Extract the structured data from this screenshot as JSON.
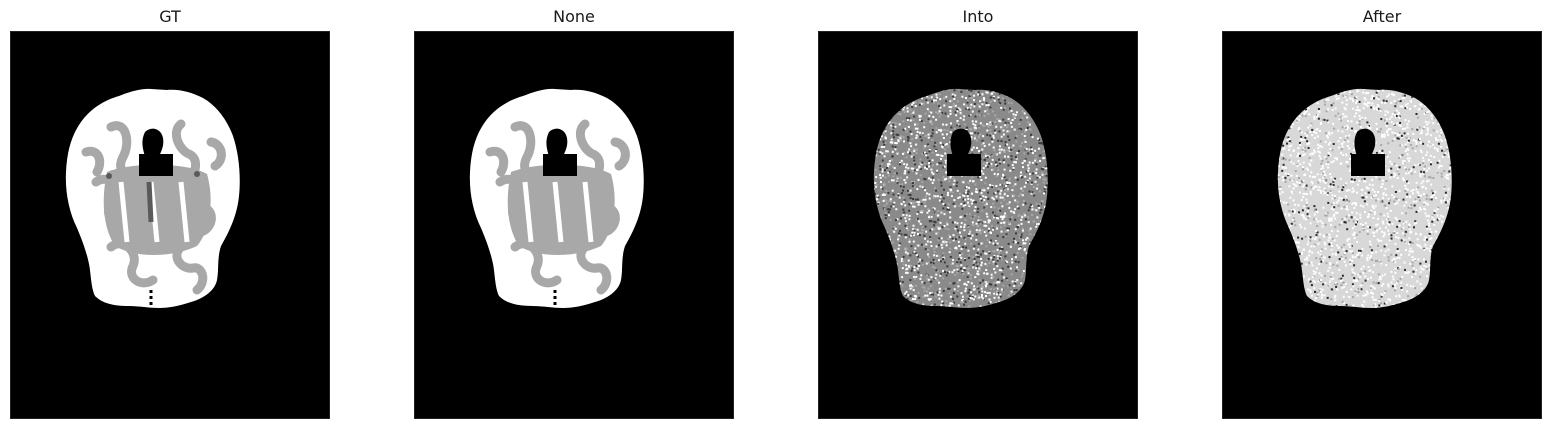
{
  "figure": {
    "panels": [
      {
        "title": "GT",
        "style": "gt"
      },
      {
        "title": "None",
        "style": "none"
      },
      {
        "title": "Into",
        "style": "noisy"
      },
      {
        "title": "After",
        "style": "noisy-light"
      }
    ],
    "colors": {
      "background": "#000000",
      "white_matter": "#ffffff",
      "gray_matter": "#a8a8a8",
      "csf": "#5a5a5a"
    }
  }
}
